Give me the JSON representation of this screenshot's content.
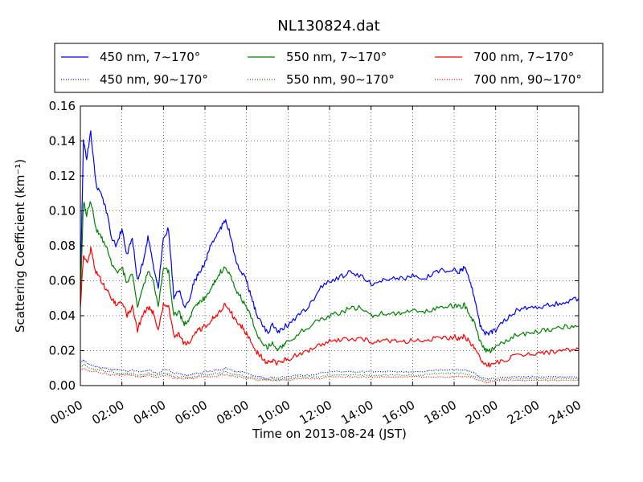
{
  "chart_data": {
    "type": "line",
    "title": "NL130824.dat",
    "xlabel": "Time on 2013-08-24 (JST)",
    "ylabel": "Scattering Coefficient (km⁻¹)",
    "xlim": [
      "00:00",
      "24:00"
    ],
    "ylim": [
      0,
      0.16
    ],
    "x_ticks": [
      "00:00",
      "02:00",
      "04:00",
      "06:00",
      "08:00",
      "10:00",
      "12:00",
      "14:00",
      "16:00",
      "18:00",
      "20:00",
      "22:00",
      "24:00"
    ],
    "y_ticks": [
      "0.00",
      "0.02",
      "0.04",
      "0.06",
      "0.08",
      "0.10",
      "0.12",
      "0.14",
      "0.16"
    ],
    "grid": true,
    "legend_position": "top",
    "x_hours": [
      0,
      0.15,
      0.3,
      0.5,
      0.75,
      1.0,
      1.25,
      1.5,
      1.75,
      2.0,
      2.25,
      2.5,
      2.75,
      3.0,
      3.25,
      3.5,
      3.75,
      4.0,
      4.25,
      4.5,
      4.75,
      5.0,
      5.25,
      5.5,
      5.75,
      6.0,
      6.25,
      6.5,
      6.75,
      7.0,
      7.25,
      7.5,
      7.75,
      8.0,
      8.25,
      8.5,
      8.75,
      9.0,
      9.25,
      9.5,
      9.75,
      10.0,
      10.5,
      11.0,
      11.5,
      12.0,
      12.5,
      13.0,
      13.5,
      14.0,
      14.5,
      15.0,
      15.5,
      16.0,
      16.5,
      17.0,
      17.5,
      18.0,
      18.25,
      18.5,
      18.75,
      19.0,
      19.25,
      19.5,
      19.75,
      20.0,
      20.5,
      21.0,
      21.5,
      22.0,
      22.5,
      23.0,
      23.5,
      24.0
    ],
    "series": [
      {
        "name": "450 nm, 7∼170°",
        "color": "#0000ff",
        "dash": "solid",
        "values": [
          0.055,
          0.14,
          0.13,
          0.145,
          0.115,
          0.11,
          0.1,
          0.085,
          0.08,
          0.09,
          0.075,
          0.085,
          0.06,
          0.07,
          0.085,
          0.07,
          0.055,
          0.085,
          0.09,
          0.05,
          0.055,
          0.045,
          0.05,
          0.06,
          0.065,
          0.07,
          0.08,
          0.085,
          0.09,
          0.095,
          0.085,
          0.07,
          0.065,
          0.06,
          0.05,
          0.04,
          0.035,
          0.03,
          0.035,
          0.03,
          0.033,
          0.035,
          0.04,
          0.045,
          0.055,
          0.06,
          0.062,
          0.065,
          0.063,
          0.058,
          0.06,
          0.062,
          0.061,
          0.063,
          0.06,
          0.065,
          0.066,
          0.067,
          0.065,
          0.068,
          0.06,
          0.05,
          0.035,
          0.03,
          0.03,
          0.032,
          0.038,
          0.043,
          0.045,
          0.045,
          0.046,
          0.047,
          0.048,
          0.05
        ]
      },
      {
        "name": "550 nm, 7∼170°",
        "color": "#008000",
        "dash": "solid",
        "values": [
          0.05,
          0.105,
          0.098,
          0.105,
          0.09,
          0.085,
          0.08,
          0.07,
          0.065,
          0.068,
          0.058,
          0.065,
          0.045,
          0.055,
          0.065,
          0.06,
          0.045,
          0.068,
          0.065,
          0.04,
          0.042,
          0.035,
          0.038,
          0.045,
          0.048,
          0.05,
          0.055,
          0.06,
          0.065,
          0.068,
          0.062,
          0.055,
          0.05,
          0.045,
          0.038,
          0.03,
          0.025,
          0.022,
          0.025,
          0.021,
          0.023,
          0.025,
          0.03,
          0.033,
          0.038,
          0.04,
          0.042,
          0.044,
          0.045,
          0.04,
          0.041,
          0.042,
          0.041,
          0.043,
          0.042,
          0.044,
          0.045,
          0.046,
          0.045,
          0.046,
          0.04,
          0.035,
          0.025,
          0.02,
          0.02,
          0.022,
          0.026,
          0.029,
          0.03,
          0.031,
          0.032,
          0.033,
          0.034,
          0.034
        ]
      },
      {
        "name": "700 nm, 7∼170°",
        "color": "#ff0000",
        "dash": "solid",
        "values": [
          0.045,
          0.075,
          0.07,
          0.078,
          0.065,
          0.06,
          0.055,
          0.05,
          0.046,
          0.048,
          0.04,
          0.045,
          0.032,
          0.04,
          0.045,
          0.042,
          0.032,
          0.046,
          0.045,
          0.028,
          0.03,
          0.024,
          0.025,
          0.03,
          0.032,
          0.034,
          0.037,
          0.04,
          0.043,
          0.047,
          0.042,
          0.037,
          0.034,
          0.03,
          0.024,
          0.019,
          0.016,
          0.013,
          0.014,
          0.013,
          0.014,
          0.015,
          0.018,
          0.02,
          0.023,
          0.025,
          0.026,
          0.027,
          0.027,
          0.025,
          0.025,
          0.026,
          0.025,
          0.026,
          0.025,
          0.027,
          0.027,
          0.028,
          0.027,
          0.028,
          0.025,
          0.021,
          0.016,
          0.012,
          0.012,
          0.013,
          0.015,
          0.017,
          0.018,
          0.019,
          0.019,
          0.02,
          0.02,
          0.021
        ]
      },
      {
        "name": "450 nm, 90∼170°",
        "color": "#0000ff",
        "dash": "dotted",
        "values": [
          0.013,
          0.015,
          0.013,
          0.012,
          0.011,
          0.01,
          0.01,
          0.009,
          0.009,
          0.009,
          0.008,
          0.009,
          0.008,
          0.008,
          0.009,
          0.008,
          0.007,
          0.009,
          0.009,
          0.007,
          0.007,
          0.006,
          0.006,
          0.007,
          0.007,
          0.008,
          0.008,
          0.009,
          0.009,
          0.01,
          0.009,
          0.008,
          0.008,
          0.007,
          0.006,
          0.005,
          0.005,
          0.004,
          0.005,
          0.004,
          0.005,
          0.005,
          0.006,
          0.006,
          0.007,
          0.008,
          0.008,
          0.008,
          0.008,
          0.008,
          0.008,
          0.008,
          0.008,
          0.008,
          0.008,
          0.009,
          0.009,
          0.009,
          0.009,
          0.009,
          0.008,
          0.007,
          0.005,
          0.004,
          0.004,
          0.004,
          0.005,
          0.005,
          0.005,
          0.005,
          0.005,
          0.005,
          0.005,
          0.005
        ]
      },
      {
        "name": "550 nm, 90∼170°",
        "color": "#008000",
        "dash": "dotted",
        "values": [
          0.011,
          0.012,
          0.011,
          0.01,
          0.009,
          0.009,
          0.008,
          0.008,
          0.007,
          0.007,
          0.007,
          0.007,
          0.006,
          0.006,
          0.007,
          0.006,
          0.006,
          0.007,
          0.007,
          0.005,
          0.005,
          0.005,
          0.005,
          0.005,
          0.006,
          0.006,
          0.006,
          0.007,
          0.007,
          0.008,
          0.007,
          0.006,
          0.006,
          0.005,
          0.005,
          0.004,
          0.004,
          0.003,
          0.004,
          0.003,
          0.004,
          0.004,
          0.005,
          0.005,
          0.005,
          0.006,
          0.006,
          0.006,
          0.006,
          0.006,
          0.006,
          0.006,
          0.006,
          0.006,
          0.006,
          0.007,
          0.007,
          0.007,
          0.007,
          0.007,
          0.006,
          0.005,
          0.004,
          0.003,
          0.003,
          0.003,
          0.004,
          0.004,
          0.004,
          0.004,
          0.004,
          0.004,
          0.004,
          0.004
        ]
      },
      {
        "name": "700 nm, 90∼170°",
        "color": "#ff0000",
        "dash": "dotted",
        "values": [
          0.009,
          0.01,
          0.009,
          0.008,
          0.008,
          0.007,
          0.007,
          0.006,
          0.006,
          0.006,
          0.006,
          0.006,
          0.005,
          0.005,
          0.006,
          0.005,
          0.005,
          0.006,
          0.006,
          0.004,
          0.004,
          0.004,
          0.004,
          0.004,
          0.005,
          0.005,
          0.005,
          0.005,
          0.006,
          0.006,
          0.006,
          0.005,
          0.005,
          0.004,
          0.004,
          0.003,
          0.003,
          0.003,
          0.003,
          0.003,
          0.003,
          0.003,
          0.004,
          0.004,
          0.004,
          0.005,
          0.005,
          0.005,
          0.005,
          0.005,
          0.005,
          0.005,
          0.005,
          0.005,
          0.005,
          0.005,
          0.005,
          0.005,
          0.005,
          0.005,
          0.005,
          0.004,
          0.003,
          0.002,
          0.002,
          0.003,
          0.003,
          0.003,
          0.003,
          0.003,
          0.003,
          0.003,
          0.003,
          0.003
        ]
      }
    ]
  }
}
